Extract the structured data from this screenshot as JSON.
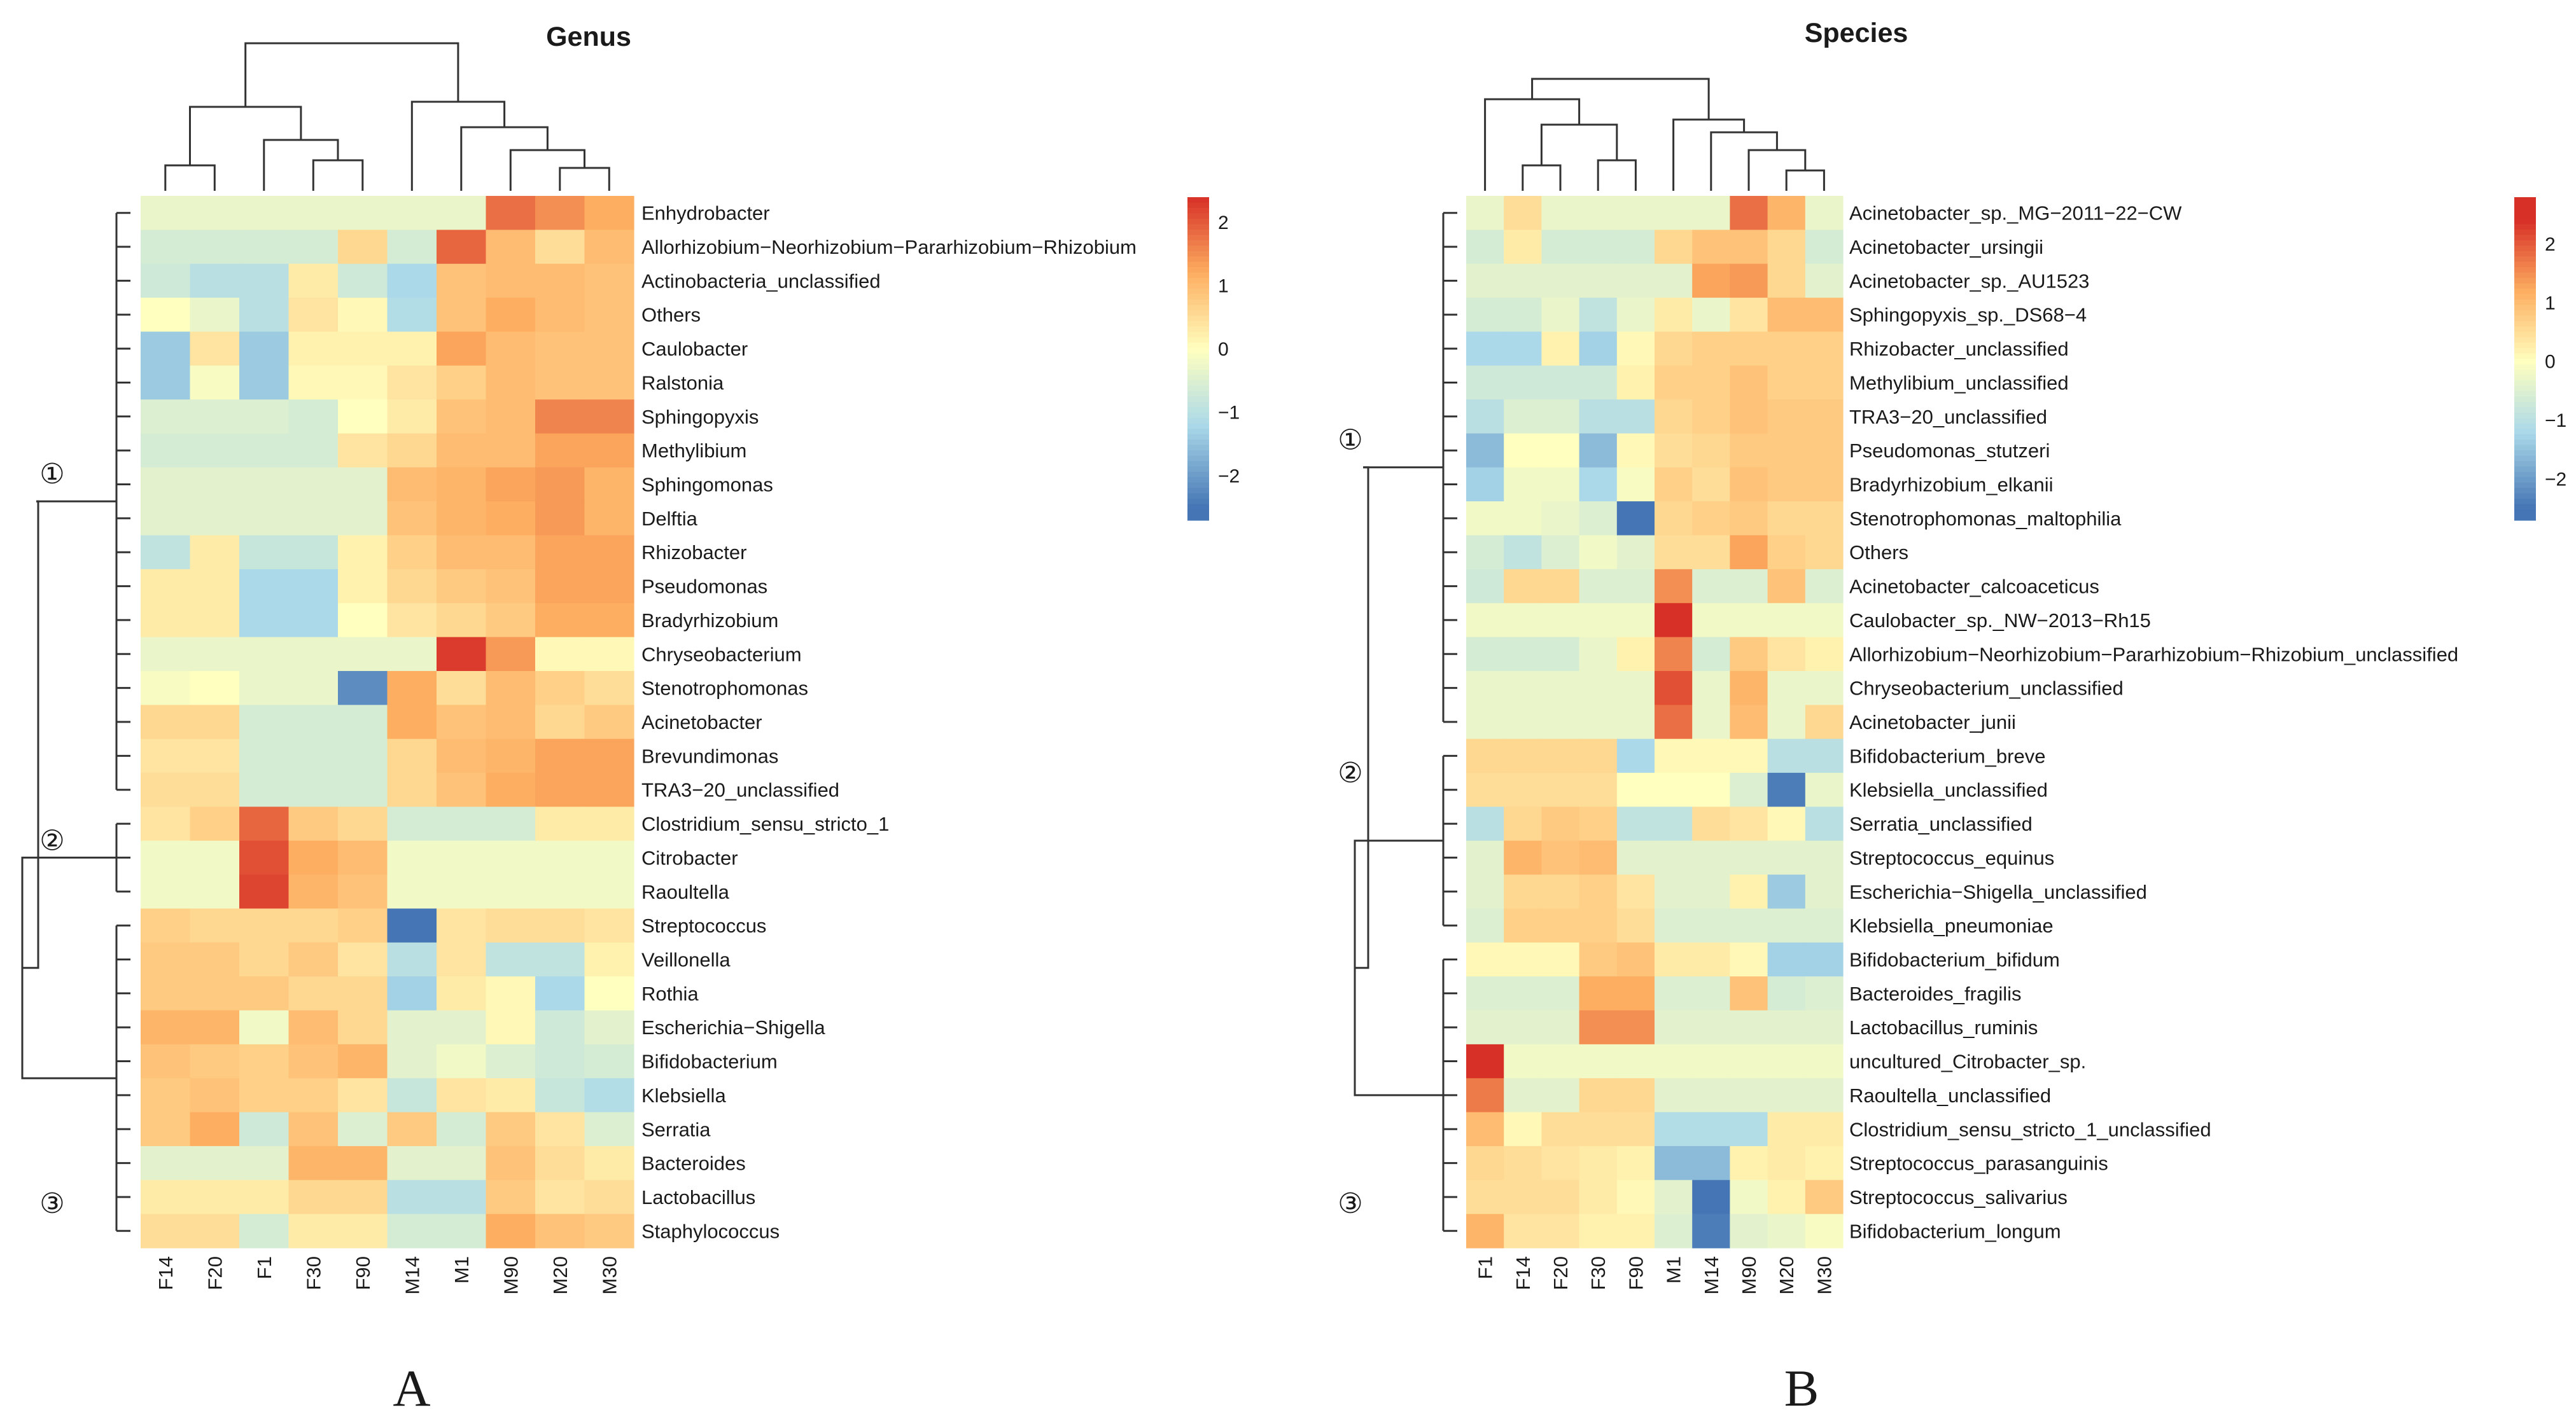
{
  "colors": {
    "low": "#4575b4",
    "mid_low": "#abd9e9",
    "mid": "#ffffbf",
    "mid_high": "#fdae61",
    "high": "#d73027",
    "dendrogram": "#333333"
  },
  "chart_data": [
    {
      "type": "heatmap",
      "panel_label": "A",
      "title": "Genus",
      "columns": [
        "F14",
        "F20",
        "F1",
        "F30",
        "F90",
        "M14",
        "M1",
        "M90",
        "M20",
        "M30"
      ],
      "rows": [
        "Enhydrobacter",
        "Allorhizobium−Neorhizobium−Pararhizobium−Rhizobium",
        "Actinobacteria_unclassified",
        "Others",
        "Caulobacter",
        "Ralstonia",
        "Sphingopyxis",
        "Methylibium",
        "Sphingomonas",
        "Delftia",
        "Rhizobacter",
        "Pseudomonas",
        "Bradyrhizobium",
        "Chryseobacterium",
        "Stenotrophomonas",
        "Acinetobacter",
        "Brevundimonas",
        "TRA3−20_unclassified",
        "Clostridium_sensu_stricto_1",
        "Citrobacter",
        "Raoultella",
        "Streptococcus",
        "Veillonella",
        "Rothia",
        "Escherichia−Shigella",
        "Bifidobacterium",
        "Klebsiella",
        "Serratia",
        "Bacteroides",
        "Lactobacillus",
        "Staphylococcus"
      ],
      "values": [
        [
          -0.3,
          -0.3,
          -0.3,
          -0.3,
          -0.3,
          -0.3,
          -0.3,
          1.8,
          1.5,
          1.2
        ],
        [
          -0.6,
          -0.6,
          -0.6,
          -0.6,
          0.6,
          -0.6,
          1.9,
          1.0,
          0.5,
          1.0
        ],
        [
          -0.7,
          -1.0,
          -1.0,
          0.3,
          -0.7,
          -1.2,
          0.9,
          1.0,
          1.0,
          0.9
        ],
        [
          0.0,
          -0.3,
          -1.0,
          0.4,
          0.1,
          -1.1,
          0.9,
          1.2,
          1.0,
          0.9
        ],
        [
          -1.4,
          0.4,
          -1.4,
          0.2,
          0.2,
          0.2,
          1.3,
          1.0,
          0.9,
          0.9
        ],
        [
          -1.4,
          -0.1,
          -1.4,
          0.1,
          0.1,
          0.4,
          0.7,
          1.0,
          0.9,
          0.9
        ],
        [
          -0.5,
          -0.5,
          -0.5,
          -0.6,
          0.0,
          0.3,
          0.9,
          1.0,
          1.6,
          1.6
        ],
        [
          -0.6,
          -0.6,
          -0.6,
          -0.6,
          0.4,
          0.6,
          1.0,
          1.0,
          1.3,
          1.3
        ],
        [
          -0.4,
          -0.4,
          -0.4,
          -0.4,
          -0.4,
          1.0,
          1.1,
          1.3,
          1.4,
          1.1
        ],
        [
          -0.4,
          -0.4,
          -0.4,
          -0.4,
          -0.4,
          0.9,
          1.1,
          1.2,
          1.4,
          1.1
        ],
        [
          -0.9,
          0.3,
          -0.8,
          -0.8,
          0.2,
          0.7,
          1.0,
          1.0,
          1.3,
          1.3
        ],
        [
          0.3,
          0.3,
          -1.2,
          -1.2,
          0.2,
          0.6,
          0.8,
          0.9,
          1.3,
          1.3
        ],
        [
          0.3,
          0.3,
          -1.2,
          -1.2,
          0.0,
          0.4,
          0.6,
          0.8,
          1.2,
          1.2
        ],
        [
          -0.3,
          -0.3,
          -0.3,
          -0.3,
          -0.3,
          -0.3,
          2.3,
          1.4,
          0.1,
          0.1
        ],
        [
          -0.1,
          0.0,
          -0.3,
          -0.3,
          -2.2,
          1.2,
          0.5,
          1.0,
          0.7,
          0.5
        ],
        [
          0.6,
          0.6,
          -0.6,
          -0.6,
          -0.6,
          1.2,
          0.9,
          1.0,
          0.6,
          0.8
        ],
        [
          0.4,
          0.4,
          -0.6,
          -0.6,
          -0.6,
          0.6,
          1.0,
          1.1,
          1.3,
          1.3
        ],
        [
          0.5,
          0.5,
          -0.6,
          -0.6,
          -0.6,
          0.6,
          0.9,
          1.2,
          1.3,
          1.3
        ],
        [
          0.4,
          0.7,
          1.9,
          0.8,
          0.6,
          -0.6,
          -0.6,
          -0.6,
          0.3,
          0.3
        ],
        [
          -0.2,
          -0.2,
          2.1,
          1.2,
          1.0,
          -0.2,
          -0.2,
          -0.2,
          -0.2,
          -0.2
        ],
        [
          -0.2,
          -0.2,
          2.2,
          1.1,
          0.9,
          -0.2,
          -0.2,
          -0.2,
          -0.2,
          -0.2
        ],
        [
          0.7,
          0.6,
          0.6,
          0.6,
          0.7,
          -2.6,
          0.4,
          0.5,
          0.5,
          0.4
        ],
        [
          0.8,
          0.8,
          0.6,
          0.8,
          0.4,
          -1.0,
          0.4,
          -0.9,
          -0.9,
          0.2
        ],
        [
          0.8,
          0.8,
          0.8,
          0.6,
          0.6,
          -1.3,
          0.3,
          0.1,
          -1.2,
          0.0
        ],
        [
          1.1,
          1.1,
          -0.2,
          1.0,
          0.6,
          -0.4,
          -0.4,
          0.1,
          -0.7,
          -0.4
        ],
        [
          0.9,
          0.8,
          0.7,
          0.9,
          1.1,
          -0.4,
          -0.2,
          -0.5,
          -0.7,
          -0.6
        ],
        [
          0.8,
          0.9,
          0.7,
          0.7,
          0.4,
          -0.8,
          0.4,
          0.3,
          -0.8,
          -1.1
        ],
        [
          0.8,
          1.2,
          -0.7,
          0.9,
          -0.5,
          0.8,
          -0.6,
          0.8,
          0.4,
          -0.5
        ],
        [
          -0.4,
          -0.4,
          -0.4,
          1.1,
          1.1,
          -0.4,
          -0.4,
          0.9,
          0.5,
          0.3
        ],
        [
          0.3,
          0.3,
          0.3,
          0.6,
          0.6,
          -1.0,
          -1.0,
          0.8,
          0.4,
          0.5
        ],
        [
          0.5,
          0.5,
          -0.6,
          0.3,
          0.3,
          -0.6,
          -0.6,
          1.2,
          0.9,
          0.8
        ]
      ],
      "row_groups": [
        {
          "label": "①",
          "from": 0,
          "to": 17
        },
        {
          "label": "②",
          "from": 18,
          "to": 20
        },
        {
          "label": "③",
          "from": 21,
          "to": 30
        }
      ],
      "legend": {
        "ticks": [
          2,
          1,
          0,
          -1,
          -2
        ],
        "range": [
          -2.7,
          2.4
        ],
        "tick_labels": [
          "2",
          "1",
          "0",
          "−1",
          "−2"
        ]
      }
    },
    {
      "type": "heatmap",
      "panel_label": "B",
      "title": "Species",
      "columns": [
        "F1",
        "F14",
        "F20",
        "F30",
        "F90",
        "M1",
        "M14",
        "M90",
        "M20",
        "M30"
      ],
      "rows": [
        "Acinetobacter_sp._MG−2011−22−CW",
        "Acinetobacter_ursingii",
        "Acinetobacter_sp._AU1523",
        "Sphingopyxis_sp._DS68−4",
        "Rhizobacter_unclassified",
        "Methylibium_unclassified",
        "TRA3−20_unclassified",
        "Pseudomonas_stutzeri",
        "Bradyrhizobium_elkanii",
        "Stenotrophomonas_maltophilia",
        "Others",
        "Acinetobacter_calcoaceticus",
        "Caulobacter_sp._NW−2013−Rh15",
        "Allorhizobium−Neorhizobium−Pararhizobium−Rhizobium_unclassified",
        "Chryseobacterium_unclassified",
        "Acinetobacter_junii",
        "Bifidobacterium_breve",
        "Klebsiella_unclassified",
        "Serratia_unclassified",
        "Streptococcus_equinus",
        "Escherichia−Shigella_unclassified",
        "Klebsiella_pneumoniae",
        "Bifidobacterium_bifidum",
        "Bacteroides_fragilis",
        "Lactobacillus_ruminis",
        "uncultured_Citrobacter_sp.",
        "Raoultella_unclassified",
        "Clostridium_sensu_stricto_1_unclassified",
        "Streptococcus_parasanguinis",
        "Streptococcus_salivarius",
        "Bifidobacterium_longum"
      ],
      "values": [
        [
          -0.3,
          0.5,
          -0.3,
          -0.3,
          -0.3,
          -0.3,
          -0.3,
          1.8,
          1.1,
          -0.3
        ],
        [
          -0.6,
          0.3,
          -0.6,
          -0.6,
          -0.6,
          0.6,
          0.9,
          0.9,
          0.6,
          -0.6
        ],
        [
          -0.4,
          -0.4,
          -0.4,
          -0.4,
          -0.4,
          -0.4,
          1.3,
          1.4,
          0.6,
          -0.4
        ],
        [
          -0.6,
          -0.6,
          -0.3,
          -0.9,
          -0.3,
          0.3,
          -0.3,
          0.4,
          1.0,
          1.0
        ],
        [
          -1.2,
          -1.2,
          0.2,
          -1.3,
          0.1,
          0.6,
          0.7,
          0.7,
          0.7,
          0.7
        ],
        [
          -0.7,
          -0.7,
          -0.7,
          -0.7,
          0.2,
          0.7,
          0.7,
          0.9,
          0.7,
          0.7
        ],
        [
          -1.0,
          -0.5,
          -0.5,
          -1.0,
          -1.0,
          0.6,
          0.7,
          0.9,
          0.8,
          0.8
        ],
        [
          -1.6,
          0.0,
          0.0,
          -1.6,
          0.1,
          0.5,
          0.6,
          0.8,
          0.8,
          0.8
        ],
        [
          -1.3,
          -0.2,
          -0.2,
          -1.2,
          -0.1,
          0.7,
          0.5,
          0.9,
          0.8,
          0.8
        ],
        [
          -0.2,
          -0.2,
          -0.3,
          -0.5,
          -2.6,
          0.6,
          0.7,
          0.8,
          0.6,
          0.6
        ],
        [
          -0.6,
          -0.9,
          -0.5,
          -0.2,
          -0.4,
          0.5,
          0.5,
          1.3,
          0.7,
          0.6
        ],
        [
          -0.7,
          0.6,
          0.6,
          -0.5,
          -0.5,
          1.5,
          -0.5,
          -0.5,
          0.9,
          -0.5
        ],
        [
          -0.2,
          -0.2,
          -0.2,
          -0.2,
          -0.2,
          2.5,
          -0.2,
          -0.2,
          -0.2,
          -0.2
        ],
        [
          -0.6,
          -0.6,
          -0.6,
          -0.3,
          0.2,
          1.6,
          -0.6,
          0.8,
          0.4,
          0.2
        ],
        [
          -0.3,
          -0.3,
          -0.3,
          -0.3,
          -0.3,
          2.1,
          -0.3,
          1.1,
          -0.3,
          -0.3
        ],
        [
          -0.3,
          -0.3,
          -0.3,
          -0.3,
          -0.3,
          1.8,
          -0.3,
          1.0,
          -0.3,
          0.6
        ],
        [
          0.6,
          0.6,
          0.6,
          0.6,
          -1.2,
          0.1,
          0.1,
          0.1,
          -1.0,
          -1.0
        ],
        [
          0.5,
          0.5,
          0.5,
          0.5,
          0.0,
          0.0,
          0.0,
          -0.5,
          -2.4,
          -0.3
        ],
        [
          -1.0,
          0.6,
          0.8,
          0.7,
          -0.9,
          -0.9,
          0.5,
          0.4,
          0.1,
          -1.0
        ],
        [
          -0.4,
          1.1,
          0.9,
          1.0,
          -0.4,
          -0.4,
          -0.4,
          -0.4,
          -0.4,
          -0.4
        ],
        [
          -0.4,
          0.6,
          0.6,
          0.7,
          0.4,
          -0.4,
          -0.4,
          0.2,
          -1.4,
          -0.4
        ],
        [
          -0.5,
          0.7,
          0.7,
          0.7,
          0.5,
          -0.5,
          -0.5,
          -0.5,
          -0.5,
          -0.5
        ],
        [
          0.1,
          0.1,
          0.1,
          0.8,
          0.9,
          0.3,
          0.3,
          0.1,
          -1.3,
          -1.3
        ],
        [
          -0.5,
          -0.5,
          -0.5,
          1.2,
          1.2,
          -0.5,
          -0.5,
          0.9,
          -0.6,
          -0.5
        ],
        [
          -0.4,
          -0.4,
          -0.4,
          1.5,
          1.5,
          -0.4,
          -0.4,
          -0.4,
          -0.4,
          -0.4
        ],
        [
          2.5,
          -0.2,
          -0.2,
          -0.2,
          -0.2,
          -0.2,
          -0.2,
          -0.2,
          -0.2,
          -0.2
        ],
        [
          1.7,
          -0.4,
          -0.4,
          0.6,
          0.6,
          -0.4,
          -0.4,
          -0.4,
          -0.4,
          -0.4
        ],
        [
          1.0,
          0.1,
          0.5,
          0.5,
          0.5,
          -1.1,
          -1.1,
          -1.1,
          0.3,
          0.3
        ],
        [
          0.6,
          0.5,
          0.4,
          0.3,
          0.2,
          -1.6,
          -1.6,
          0.2,
          0.3,
          0.2
        ],
        [
          0.5,
          0.5,
          0.5,
          0.3,
          0.1,
          -0.4,
          -2.5,
          -0.2,
          0.2,
          0.8
        ],
        [
          1.1,
          0.4,
          0.4,
          0.2,
          0.2,
          -0.5,
          -2.4,
          -0.4,
          -0.3,
          -0.1
        ]
      ],
      "row_groups": [
        {
          "label": "①",
          "from": 0,
          "to": 15
        },
        {
          "label": "②",
          "from": 16,
          "to": 21
        },
        {
          "label": "③",
          "from": 22,
          "to": 30
        }
      ],
      "legend": {
        "ticks": [
          2,
          1,
          0,
          -1,
          -2
        ],
        "range": [
          -2.7,
          2.8
        ],
        "tick_labels": [
          "2",
          "1",
          "0",
          "−1",
          "−2"
        ]
      }
    }
  ]
}
